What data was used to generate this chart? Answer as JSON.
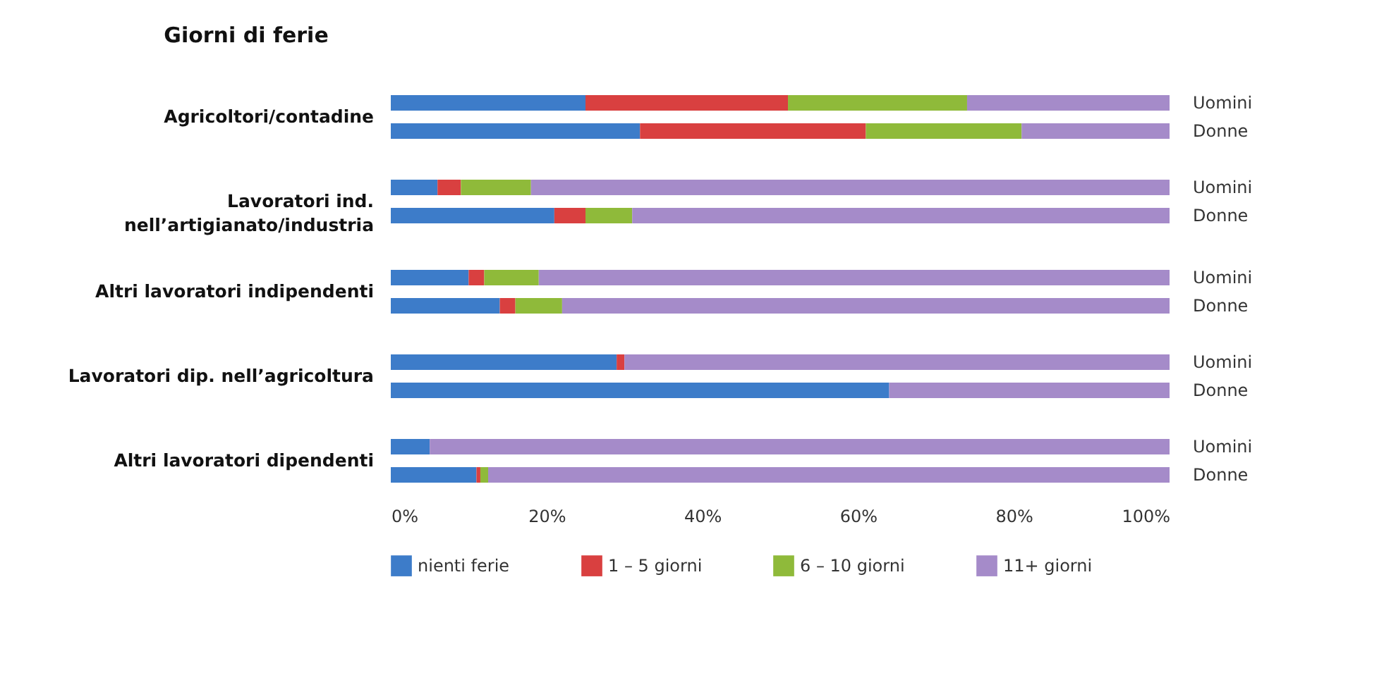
{
  "chart_data": [
    {
      "type": "bar",
      "title": "Giorni di ferie",
      "ylabel": "Agricoltori/contadine",
      "orientation": "horizontal",
      "stacked": true,
      "categories": [
        "Uomini",
        "Donne"
      ],
      "xlim": [
        0,
        100
      ],
      "tick_labels": "y",
      "legend": false,
      "series": [
        {
          "color": "#3d7cc9",
          "values": [
            25,
            32
          ]
        },
        {
          "color": "#d94040",
          "values": [
            26,
            29
          ]
        },
        {
          "color": "#8fba3a",
          "values": [
            23,
            20
          ]
        },
        {
          "color": "#a58bc9",
          "values": [
            26,
            19
          ]
        }
      ]
    },
    {
      "type": "bar",
      "ylabel": "Lavoratori ind.\nnell’artigianato/industria",
      "orientation": "horizontal",
      "stacked": true,
      "categories": [
        "Uomini",
        "Donne"
      ],
      "xlim": [
        0,
        100
      ],
      "tick_labels": "y",
      "legend": false,
      "series": [
        {
          "color": "#3d7cc9",
          "values": [
            6,
            21
          ]
        },
        {
          "color": "#d94040",
          "values": [
            3,
            4
          ]
        },
        {
          "color": "#8fba3a",
          "values": [
            9,
            6
          ]
        },
        {
          "color": "#a58bc9",
          "values": [
            82,
            69
          ]
        }
      ]
    },
    {
      "type": "bar",
      "ylabel": "Altri lavoratori indipendenti",
      "orientation": "horizontal",
      "stacked": true,
      "categories": [
        "Uomini",
        "Donne"
      ],
      "xlim": [
        0,
        100
      ],
      "tick_labels": "y",
      "legend": false,
      "series": [
        {
          "color": "#3d7cc9",
          "values": [
            10,
            14
          ]
        },
        {
          "color": "#d94040",
          "values": [
            2,
            2
          ]
        },
        {
          "color": "#8fba3a",
          "values": [
            7,
            6
          ]
        },
        {
          "color": "#a58bc9",
          "values": [
            81,
            78
          ]
        }
      ]
    },
    {
      "type": "bar",
      "ylabel": "Lavoratori dip. nell’agricoltura",
      "orientation": "horizontal",
      "stacked": true,
      "categories": [
        "Uomini",
        "Donne"
      ],
      "xlim": [
        0,
        100
      ],
      "tick_labels": "y",
      "legend": false,
      "series": [
        {
          "color": "#3d7cc9",
          "values": [
            29,
            64
          ]
        },
        {
          "color": "#d94040",
          "values": [
            1,
            0
          ]
        },
        {
          "color": "#8fba3a",
          "values": [
            0,
            0
          ]
        },
        {
          "color": "#a58bc9",
          "values": [
            70,
            36
          ]
        }
      ]
    },
    {
      "type": "bar",
      "ylabel": "Altri lavoratori dipendenti",
      "orientation": "horizontal",
      "stacked": true,
      "categories": [
        "Uomini",
        "Donne"
      ],
      "xlim": [
        0,
        100
      ],
      "xticks": [
        {
          "value": 0,
          "label": "0%"
        },
        {
          "value": 20,
          "label": "20%"
        },
        {
          "value": 40,
          "label": "40%"
        },
        {
          "value": 60,
          "label": "60%"
        },
        {
          "value": 80,
          "label": "80%"
        },
        {
          "value": 100,
          "label": "100%"
        }
      ],
      "legend": "bottom",
      "series": [
        {
          "name": "nienti ferie",
          "color": "#3d7cc9",
          "values": [
            5,
            11
          ]
        },
        {
          "name": "1 – 5 giorni",
          "color": "#d94040",
          "values": [
            0,
            0.5
          ]
        },
        {
          "name": "6 – 10 giorni",
          "color": "#8fba3a",
          "values": [
            0,
            1
          ]
        },
        {
          "name": "11+ giorni",
          "color": "#a58bc9",
          "values": [
            95,
            87.5
          ]
        }
      ]
    }
  ]
}
